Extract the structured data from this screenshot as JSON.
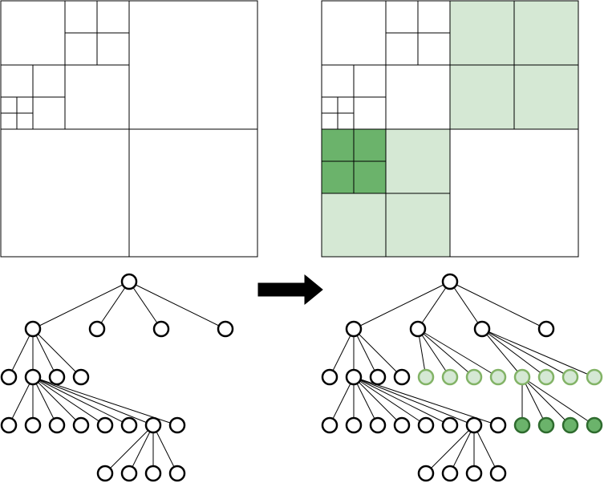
{
  "colors": {
    "stroke": "#000000",
    "background": "#ffffff",
    "light_green_fill": "#d5e8d4",
    "light_green_stroke": "#82b366",
    "dark_green_fill": "#6bb36b",
    "dark_green_stroke": "#2e6b2e"
  },
  "diagram": {
    "panels": [
      "quadtree-before",
      "quadtree-after"
    ],
    "arrow": "right-arrow",
    "before_tree": {
      "root_children": 4,
      "refined_child": 1,
      "refined_grandchild": 2,
      "refined_great_grandchild": 6
    },
    "after_tree": {
      "root_children": 4,
      "new_light_green_leaves": 8,
      "new_dark_green_leaves": 4
    }
  }
}
